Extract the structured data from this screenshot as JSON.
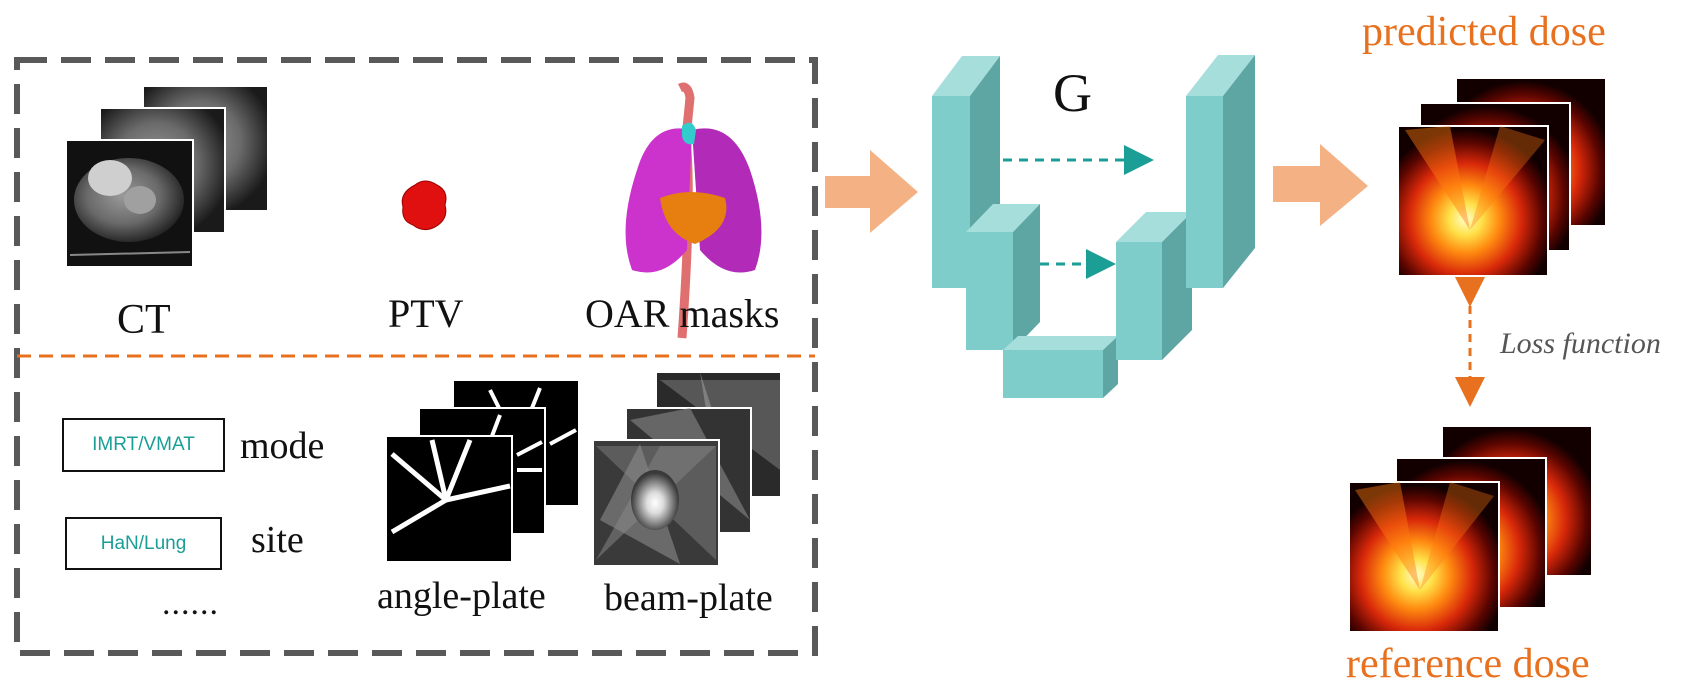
{
  "inputs": {
    "ct_label": "CT",
    "ptv_label": "PTV",
    "oar_label": "OAR masks",
    "mode_box": "IMRT/VMAT",
    "mode_label": "mode",
    "site_box": "HaN/Lung",
    "site_label": "site",
    "ellipsis": "......",
    "angle_plate_label": "angle-plate",
    "beam_plate_label": "beam-plate"
  },
  "network": {
    "label": "G"
  },
  "outputs": {
    "predicted_title": "predicted dose",
    "reference_title": "reference dose",
    "loss_label": "Loss function"
  },
  "colors": {
    "unet_front": "#7fcdcb",
    "unet_side": "#5ea6a4",
    "unet_top": "#a6dedb",
    "skip_arrow": "#1a9e96",
    "flow_arrow": "#f4b183",
    "dashed_box": "#595959",
    "separator": "#e8711f",
    "title_orange": "#e8711f"
  }
}
